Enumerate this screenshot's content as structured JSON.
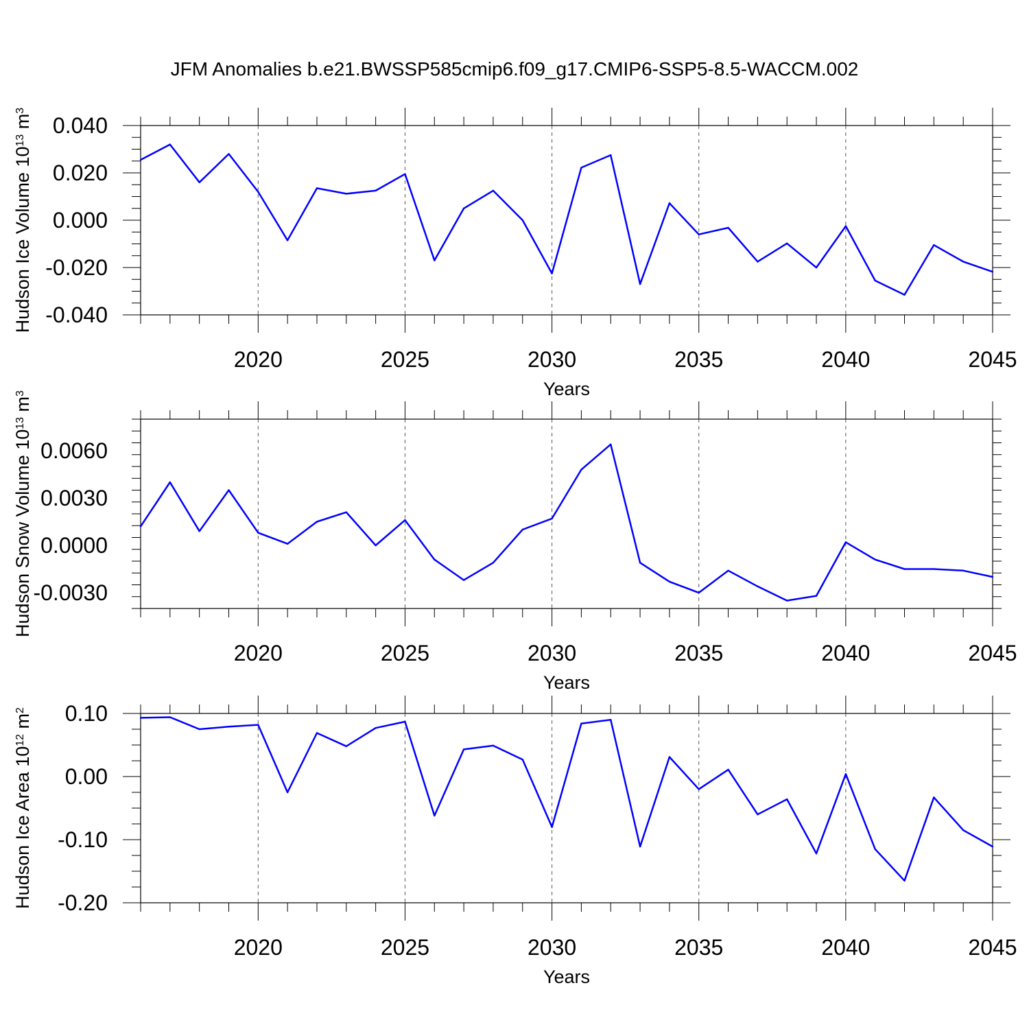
{
  "title": "JFM Anomalies b.e21.BWSSP585cmip6.f09_g17.CMIP6-SSP5-8.5-WACCM.002",
  "colors": {
    "line": "#0000ff",
    "axis": "#000000",
    "grid": "#555555"
  },
  "chart_data": [
    {
      "type": "line",
      "ylabel": {
        "text": "Hudson Ice Volume 10",
        "exp": "13",
        "unit": " m",
        "unit_exp": "3"
      },
      "xlabel": "Years",
      "xlim": [
        2016,
        2045
      ],
      "ylim": [
        -0.04,
        0.04
      ],
      "yticks": [
        -0.04,
        -0.02,
        0.0,
        0.02,
        0.04
      ],
      "ytick_labels": [
        "-0.040",
        "-0.020",
        "0.000",
        "0.020",
        "0.040"
      ],
      "xticks": [
        2020,
        2025,
        2030,
        2035,
        2040,
        2045
      ],
      "xtick_labels": [
        "2020",
        "2025",
        "2030",
        "2035",
        "2040",
        "2045"
      ],
      "x": [
        2016,
        2017,
        2018,
        2019,
        2020,
        2021,
        2022,
        2023,
        2024,
        2025,
        2026,
        2027,
        2028,
        2029,
        2030,
        2031,
        2032,
        2033,
        2034,
        2035,
        2036,
        2037,
        2038,
        2039,
        2040,
        2041,
        2042,
        2043,
        2044,
        2045
      ],
      "values": [
        0.0255,
        0.032,
        0.016,
        0.028,
        0.012,
        -0.0085,
        0.0135,
        0.0112,
        0.0125,
        0.0195,
        -0.017,
        0.005,
        0.0125,
        0.0,
        -0.0225,
        0.0222,
        0.0275,
        -0.027,
        0.0072,
        -0.006,
        -0.0032,
        -0.0175,
        -0.0098,
        -0.02,
        -0.0025,
        -0.0255,
        -0.0315,
        -0.0105,
        -0.0175,
        -0.0218
      ]
    },
    {
      "type": "line",
      "ylabel": {
        "text": "Hudson Snow Volume 10",
        "exp": "13",
        "unit": " m",
        "unit_exp": "3"
      },
      "xlabel": "Years",
      "xlim": [
        2016,
        2045
      ],
      "ylim": [
        -0.004,
        0.008
      ],
      "yticks": [
        -0.003,
        0.0,
        0.003,
        0.006
      ],
      "ytick_labels": [
        "-0.0030",
        "0.0000",
        "0.0030",
        "0.0060"
      ],
      "xticks": [
        2020,
        2025,
        2030,
        2035,
        2040,
        2045
      ],
      "xtick_labels": [
        "2020",
        "2025",
        "2030",
        "2035",
        "2040",
        "2045"
      ],
      "x": [
        2016,
        2017,
        2018,
        2019,
        2020,
        2021,
        2022,
        2023,
        2024,
        2025,
        2026,
        2027,
        2028,
        2029,
        2030,
        2031,
        2032,
        2033,
        2034,
        2035,
        2036,
        2037,
        2038,
        2039,
        2040,
        2041,
        2042,
        2043,
        2044,
        2045
      ],
      "values": [
        0.0012,
        0.004,
        0.0009,
        0.0035,
        0.0008,
        0.0001,
        0.0015,
        0.0021,
        0.0,
        0.0016,
        -0.0009,
        -0.0022,
        -0.0011,
        0.001,
        0.0017,
        0.0048,
        0.0064,
        -0.0011,
        -0.0023,
        -0.003,
        -0.0016,
        -0.0026,
        -0.0035,
        -0.0032,
        0.0002,
        -0.0009,
        -0.0015,
        -0.0015,
        -0.0016,
        -0.002
      ]
    },
    {
      "type": "line",
      "ylabel": {
        "text": "Hudson Ice Area 10",
        "exp": "12",
        "unit": " m",
        "unit_exp": "2"
      },
      "xlabel": "Years",
      "xlim": [
        2016,
        2045
      ],
      "ylim": [
        -0.2,
        0.1
      ],
      "yticks": [
        -0.2,
        -0.1,
        0.0,
        0.1
      ],
      "ytick_labels": [
        "-0.20",
        "-0.10",
        "0.00",
        "0.10"
      ],
      "xticks": [
        2020,
        2025,
        2030,
        2035,
        2040,
        2045
      ],
      "xtick_labels": [
        "2020",
        "2025",
        "2030",
        "2035",
        "2040",
        "2045"
      ],
      "x": [
        2016,
        2017,
        2018,
        2019,
        2020,
        2021,
        2022,
        2023,
        2024,
        2025,
        2026,
        2027,
        2028,
        2029,
        2030,
        2031,
        2032,
        2033,
        2034,
        2035,
        2036,
        2037,
        2038,
        2039,
        2040,
        2041,
        2042,
        2043,
        2044,
        2045
      ],
      "values": [
        0.093,
        0.094,
        0.075,
        0.079,
        0.082,
        -0.025,
        0.069,
        0.048,
        0.077,
        0.087,
        -0.062,
        0.043,
        0.049,
        0.027,
        -0.08,
        0.084,
        0.09,
        -0.111,
        0.031,
        -0.02,
        0.011,
        -0.06,
        -0.036,
        -0.122,
        0.004,
        -0.115,
        -0.165,
        -0.033,
        -0.085,
        -0.111
      ]
    }
  ]
}
